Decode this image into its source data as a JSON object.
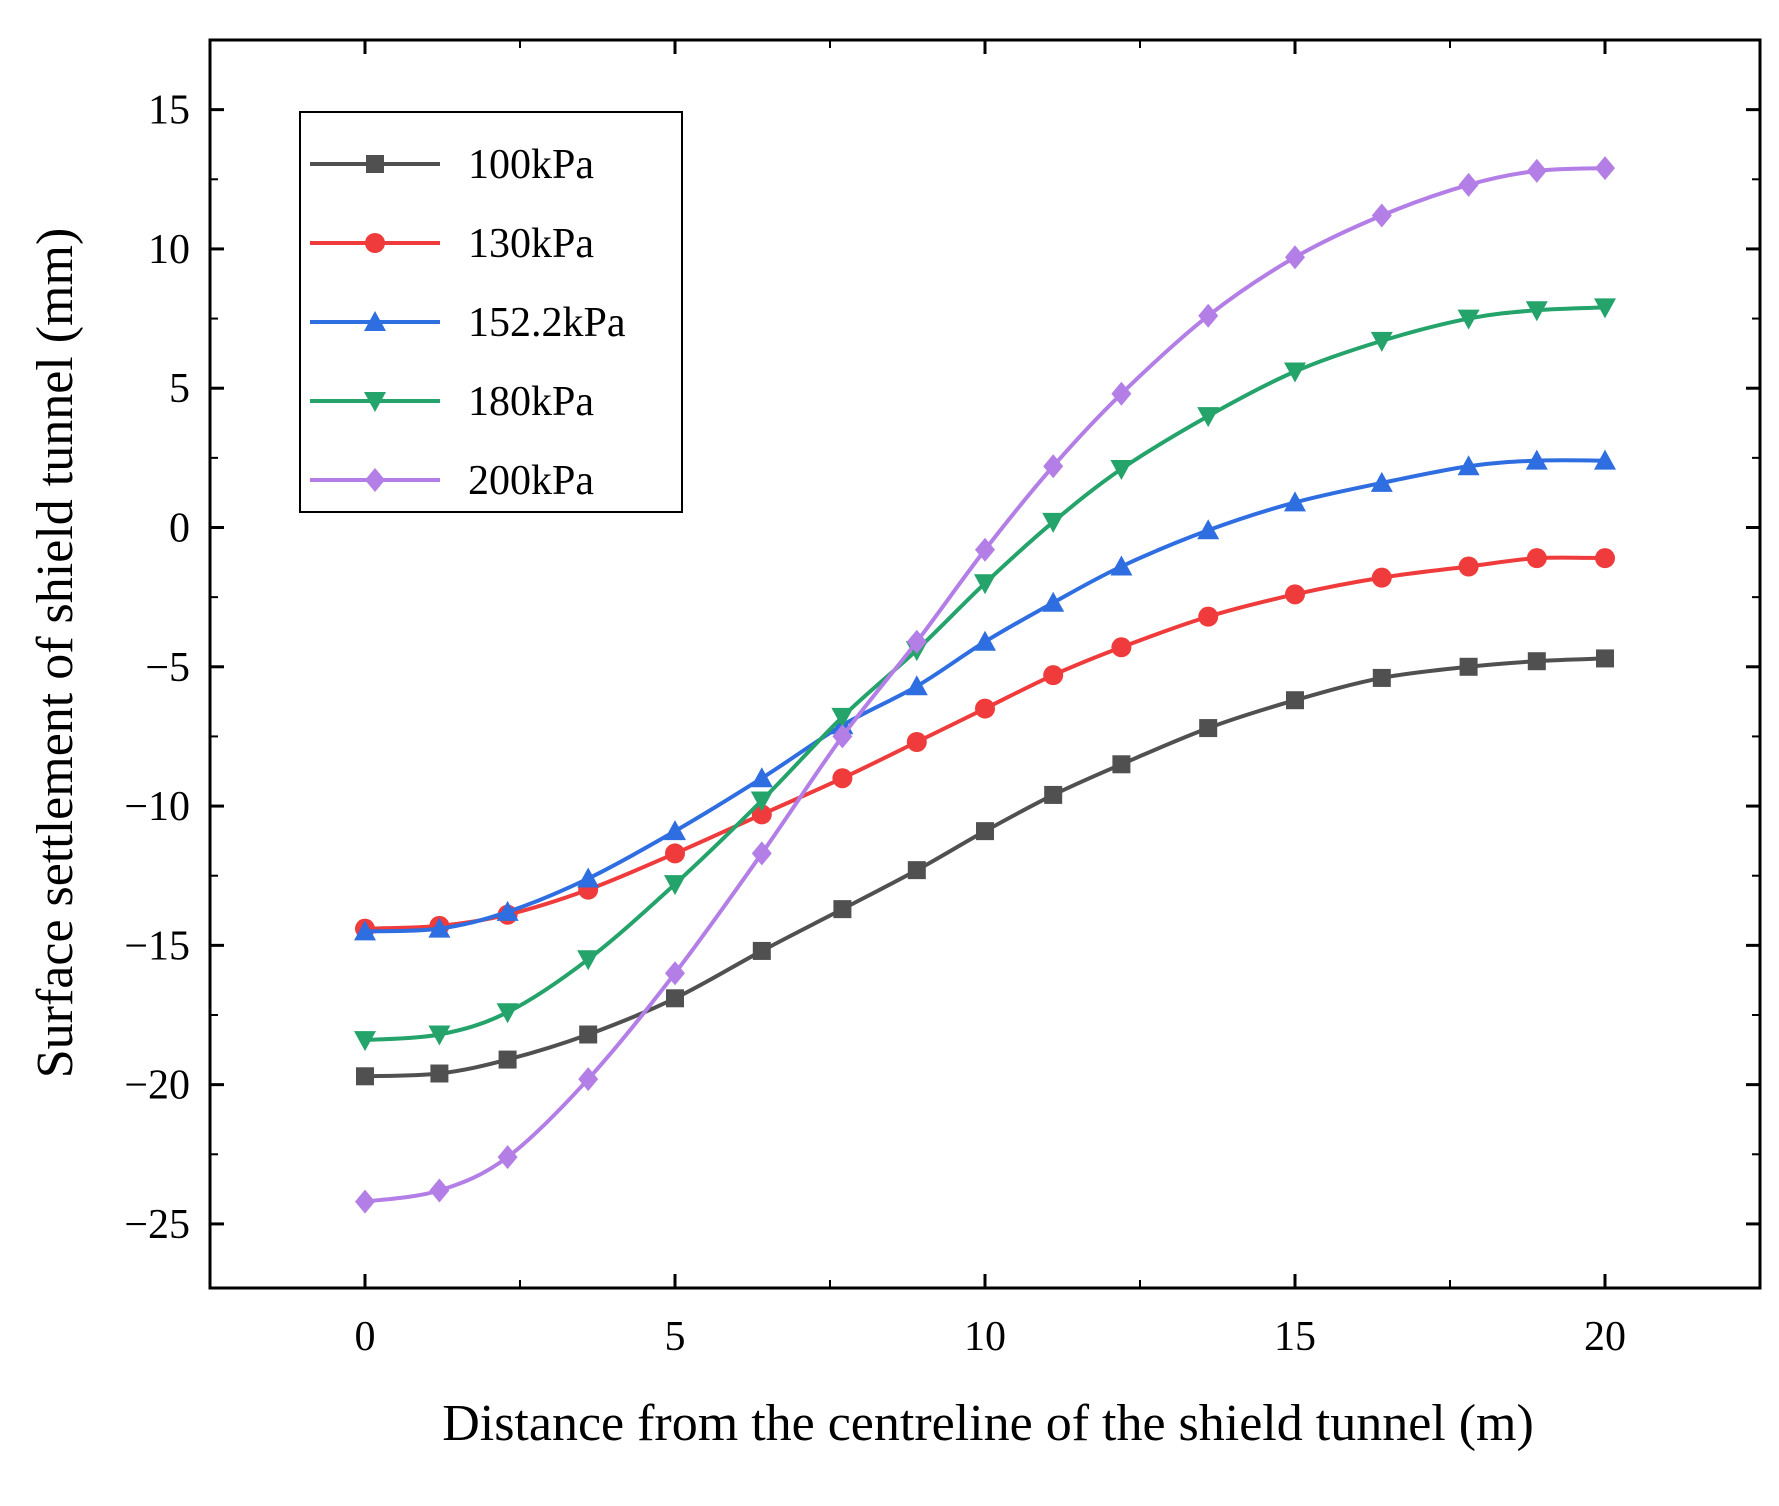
{
  "chart_data": {
    "type": "line",
    "title": "",
    "xlabel": "Distance from the centreline of the shield tunnel (m)",
    "ylabel": "Surface settlement of shield tunnel (mm)",
    "xlim": [
      -2.5,
      22.5
    ],
    "ylim": [
      -27.3,
      17.5
    ],
    "xticks": [
      0,
      5,
      10,
      15,
      20
    ],
    "yticks": [
      -25,
      -20,
      -15,
      -10,
      -5,
      0,
      5,
      10,
      15
    ],
    "ytick_labels": [
      "−25",
      "−20",
      "−15",
      "−10",
      "−5",
      "0",
      "5",
      "10",
      "15"
    ],
    "grid": false,
    "legend_position": "top-left",
    "x": [
      0,
      1.2,
      2.3,
      3.6,
      5,
      6.4,
      7.7,
      8.9,
      10,
      11.1,
      12.2,
      13.6,
      15,
      16.4,
      17.8,
      18.9,
      20
    ],
    "series": [
      {
        "name": "100kPa",
        "color": "#505050",
        "marker": "square",
        "values": [
          -19.7,
          -19.6,
          -19.1,
          -18.2,
          -16.9,
          -15.2,
          -13.7,
          -12.3,
          -10.9,
          -9.6,
          -8.5,
          -7.2,
          -6.2,
          -5.4,
          -5.0,
          -4.8,
          -4.7
        ]
      },
      {
        "name": "130kPa",
        "color": "#ef3b3b",
        "marker": "circle",
        "values": [
          -14.4,
          -14.3,
          -13.9,
          -13.0,
          -11.7,
          -10.3,
          -9.0,
          -7.7,
          -6.5,
          -5.3,
          -4.3,
          -3.2,
          -2.4,
          -1.8,
          -1.4,
          -1.1,
          -1.1
        ]
      },
      {
        "name": "152.2kPa",
        "color": "#2f6ee0",
        "marker": "triangle-up",
        "values": [
          -14.5,
          -14.4,
          -13.8,
          -12.6,
          -10.9,
          -9.0,
          -7.1,
          -5.7,
          -4.1,
          -2.7,
          -1.4,
          -0.1,
          0.9,
          1.6,
          2.2,
          2.4,
          2.4
        ]
      },
      {
        "name": "180kPa",
        "color": "#24a36a",
        "marker": "triangle-down",
        "values": [
          -18.4,
          -18.2,
          -17.4,
          -15.5,
          -12.8,
          -9.8,
          -6.8,
          -4.4,
          -2.0,
          0.2,
          2.1,
          4.0,
          5.6,
          6.7,
          7.5,
          7.8,
          7.9
        ]
      },
      {
        "name": "200kPa",
        "color": "#b37ee6",
        "marker": "diamond",
        "values": [
          -24.2,
          -23.8,
          -22.6,
          -19.8,
          -16.0,
          -11.7,
          -7.5,
          -4.1,
          -0.8,
          2.2,
          4.8,
          7.6,
          9.7,
          11.2,
          12.3,
          12.8,
          12.9
        ]
      }
    ]
  }
}
